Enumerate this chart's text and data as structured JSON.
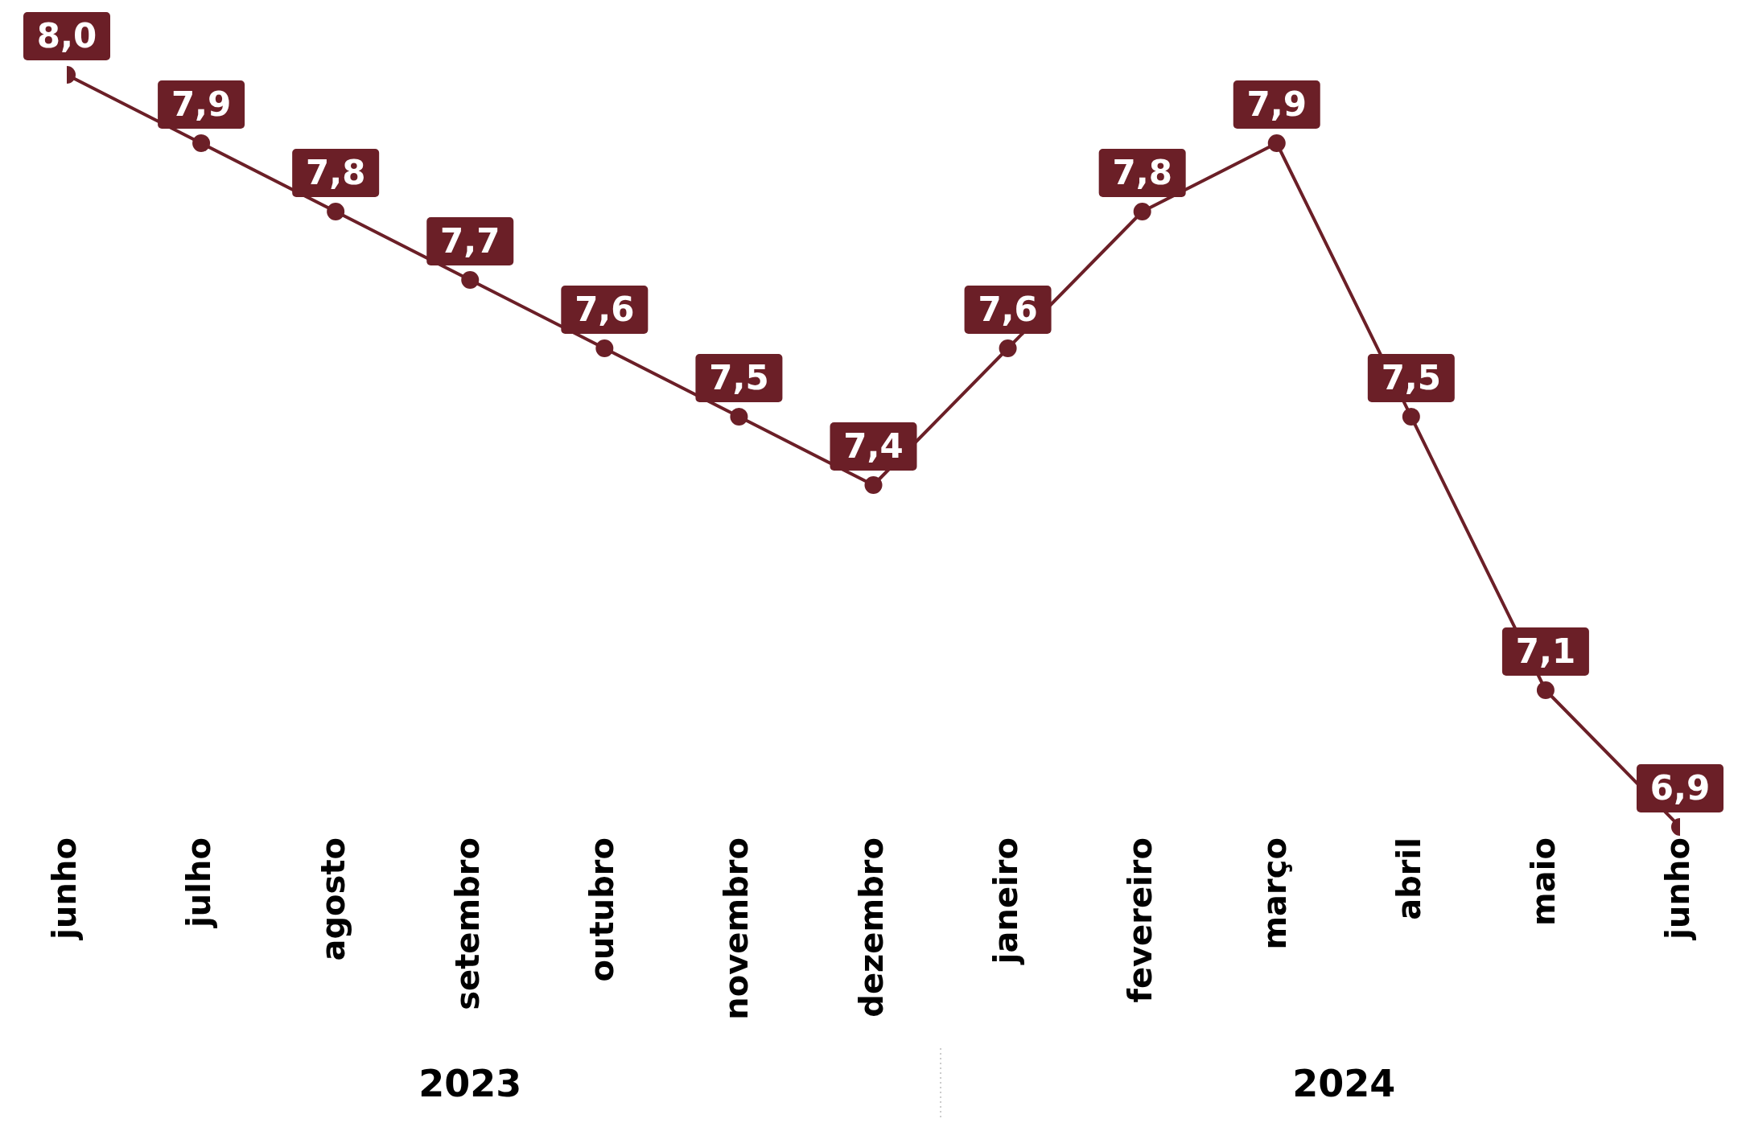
{
  "chart_data": {
    "type": "line",
    "categories": [
      "junho",
      "julho",
      "agosto",
      "setembro",
      "outubro",
      "novembro",
      "dezembro",
      "janeiro",
      "fevereiro",
      "março",
      "abril",
      "maio",
      "junho"
    ],
    "series": [
      {
        "color": "#6b1f27",
        "values": [
          8.0,
          7.9,
          7.8,
          7.7,
          7.6,
          7.5,
          7.4,
          7.6,
          7.8,
          7.9,
          7.5,
          7.1,
          6.9
        ],
        "value_labels": [
          "8,0",
          "7,9",
          "7,8",
          "7,7",
          "7,6",
          "7,5",
          "7,4",
          "7,6",
          "7,8",
          "7,9",
          "7,5",
          "7,1",
          "6,9"
        ]
      }
    ],
    "marker": "circle",
    "line_style": "solid",
    "annotations": [
      "2023",
      "2024"
    ]
  }
}
